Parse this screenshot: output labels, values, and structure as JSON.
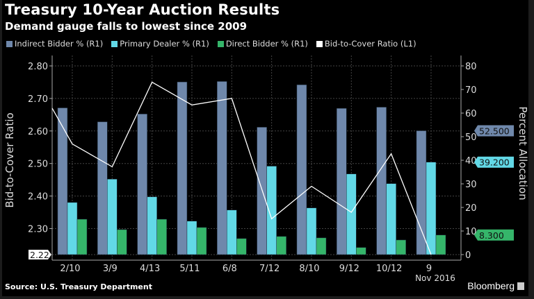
{
  "chart_data": {
    "type": "bar",
    "title": "Treasury 10-Year Auction Results",
    "subtitle": "Demand gauge falls to lowest since 2009",
    "categories": [
      "2/10",
      "3/9",
      "4/13",
      "5/11",
      "6/8",
      "7/12",
      "8/10",
      "9/12",
      "10/12",
      "9"
    ],
    "x_sublabel": "Nov 2016",
    "series": [
      {
        "name": "Indirect Bidder % (R1)",
        "axis": "right",
        "kind": "bar",
        "color": "#6f88ab",
        "values": [
          62.2,
          56.3,
          59.6,
          73.2,
          73.4,
          54.0,
          72.0,
          62.0,
          62.5,
          52.5
        ]
      },
      {
        "name": "Primary Dealer % (R1)",
        "axis": "right",
        "kind": "bar",
        "color": "#62d8e6",
        "values": [
          22.1,
          32.0,
          24.5,
          14.2,
          18.9,
          37.5,
          19.8,
          34.2,
          30.1,
          39.2
        ]
      },
      {
        "name": "Direct Bidder % (R1)",
        "axis": "right",
        "kind": "bar",
        "color": "#35b56a",
        "values": [
          15.0,
          10.6,
          15.0,
          11.5,
          6.8,
          7.7,
          7.1,
          3.0,
          6.2,
          8.3
        ]
      },
      {
        "name": "Bid-to-Cover Ratio (L1)",
        "axis": "left",
        "kind": "line",
        "color": "#ffffff",
        "line_start_value": 2.67,
        "values": [
          2.56,
          2.49,
          2.75,
          2.68,
          2.7,
          2.33,
          2.43,
          2.35,
          2.53,
          2.22
        ]
      }
    ],
    "left_axis": {
      "label": "Bid-to-Cover Ratio",
      "ylim": [
        2.22,
        2.8
      ],
      "ticks": [
        "2.80",
        "2.70",
        "2.60",
        "2.50",
        "2.40",
        "2.30"
      ],
      "tick_values": [
        2.8,
        2.7,
        2.6,
        2.5,
        2.4,
        2.3
      ],
      "last_value_label": "2.22"
    },
    "right_axis": {
      "label": "Percent Allocation",
      "ylim": [
        0,
        80
      ],
      "ticks": [
        "80",
        "70",
        "60",
        "50",
        "40",
        "30",
        "20",
        "10",
        "0"
      ],
      "tick_values": [
        80,
        70,
        60,
        50,
        40,
        30,
        20,
        10,
        0
      ]
    },
    "last_value_labels": [
      {
        "text": "52.500",
        "value": 52.5,
        "color": "#6f88ab"
      },
      {
        "text": "39.200",
        "value": 39.2,
        "color": "#62d8e6"
      },
      {
        "text": "8.300",
        "value": 8.3,
        "color": "#35b56a"
      }
    ],
    "grid": true,
    "legend_placement": "top-left"
  },
  "footer": {
    "source": "Source: U.S. Treasury Department",
    "brand": "Bloomberg"
  },
  "colors": {
    "background": "#000000"
  }
}
